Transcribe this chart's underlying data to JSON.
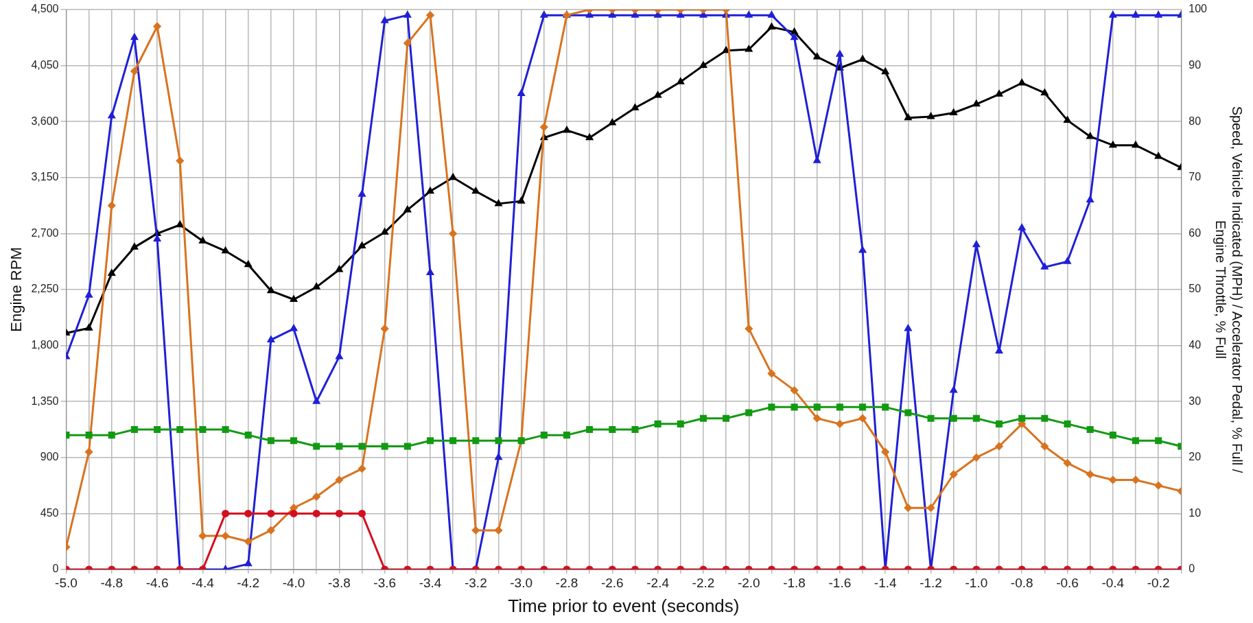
{
  "chart_data": {
    "type": "line",
    "xlabel": "Time prior to event (seconds)",
    "ylabel": "Engine RPM",
    "y2label": "Speed, Vehicle Indicated (MPH) / Accelerator Pedal, % Full / Engine Throttle, % Full",
    "x": [
      -5.0,
      -4.9,
      -4.8,
      -4.7,
      -4.6,
      -4.5,
      -4.4,
      -4.3,
      -4.2,
      -4.1,
      -4.0,
      -3.9,
      -3.8,
      -3.7,
      -3.6,
      -3.5,
      -3.4,
      -3.3,
      -3.2,
      -3.1,
      -3.0,
      -2.9,
      -2.8,
      -2.7,
      -2.6,
      -2.5,
      -2.4,
      -2.3,
      -2.2,
      -2.1,
      -2.0,
      -1.9,
      -1.8,
      -1.7,
      -1.6,
      -1.5,
      -1.4,
      -1.3,
      -1.2,
      -1.1,
      -1.0,
      -0.9,
      -0.8,
      -0.7,
      -0.6,
      -0.5,
      -0.4,
      -0.3,
      -0.2,
      -0.1
    ],
    "series": [
      {
        "color": "#d40f1f",
        "marker": "circle",
        "axis": "y2",
        "values": [
          0,
          0,
          0,
          0,
          0,
          0,
          0,
          10,
          10,
          10,
          10,
          10,
          10,
          10,
          0,
          0,
          0,
          0,
          0,
          0,
          0,
          0,
          0,
          0,
          0,
          0,
          0,
          0,
          0,
          0,
          0,
          0,
          0,
          0,
          0,
          0,
          0,
          0,
          0,
          0,
          0,
          0,
          0,
          0,
          0,
          0,
          0,
          0,
          0,
          0
        ]
      },
      {
        "color": "#139a13",
        "marker": "square",
        "axis": "y2",
        "values": [
          24,
          24,
          24,
          25,
          25,
          25,
          25,
          25,
          24,
          23,
          23,
          22,
          22,
          22,
          22,
          22,
          23,
          23,
          23,
          23,
          23,
          24,
          24,
          25,
          25,
          25,
          26,
          26,
          27,
          27,
          28,
          29,
          29,
          29,
          29,
          29,
          29,
          28,
          27,
          27,
          27,
          26,
          27,
          27,
          26,
          25,
          24,
          23,
          23,
          22
        ]
      },
      {
        "color": "#d9731f",
        "marker": "diamond",
        "axis": "y2",
        "values": [
          4,
          21,
          65,
          89,
          97,
          73,
          6,
          6,
          5,
          7,
          11,
          13,
          16,
          18,
          43,
          94,
          99,
          60,
          7,
          7,
          23,
          79,
          99,
          100,
          100,
          100,
          100,
          100,
          100,
          100,
          43,
          35,
          32,
          27,
          26,
          27,
          21,
          11,
          11,
          17,
          20,
          22,
          26,
          22,
          19,
          17,
          16,
          16,
          15,
          14
        ]
      },
      {
        "color": "#1f1fd6",
        "marker": "triangle",
        "axis": "y2",
        "values": [
          38,
          49,
          81,
          95,
          59,
          0,
          0,
          0,
          1,
          41,
          43,
          30,
          38,
          67,
          98,
          99,
          53,
          0,
          0,
          20,
          85,
          99,
          99,
          99,
          99,
          99,
          99,
          99,
          99,
          99,
          99,
          99,
          95,
          73,
          92,
          57,
          0,
          43,
          0,
          32,
          58,
          39,
          61,
          54,
          55,
          66,
          99,
          99,
          99,
          99
        ]
      },
      {
        "color": "#000000",
        "marker": "triangle",
        "axis": "y",
        "values": [
          1900,
          1940,
          2380,
          2590,
          2700,
          2770,
          2640,
          2560,
          2450,
          2240,
          2170,
          2270,
          2410,
          2600,
          2710,
          2890,
          3040,
          3150,
          3040,
          2940,
          2960,
          3470,
          3530,
          3470,
          3590,
          3710,
          3810,
          3920,
          4050,
          4170,
          4180,
          4360,
          4320,
          4120,
          4030,
          4100,
          4000,
          3630,
          3640,
          3670,
          3740,
          3820,
          3910,
          3830,
          3610,
          3480,
          3410,
          3410,
          3320,
          3230
        ]
      }
    ],
    "xlim": [
      -5.0,
      -0.1
    ],
    "xticks": [
      {
        "value": -5.0,
        "label": "-5.0"
      },
      {
        "value": -4.9,
        "label": null
      },
      {
        "value": -4.8,
        "label": "-4.8"
      },
      {
        "value": -4.7,
        "label": null
      },
      {
        "value": -4.6,
        "label": "-4.6"
      },
      {
        "value": -4.5,
        "label": null
      },
      {
        "value": -4.4,
        "label": "-4.4"
      },
      {
        "value": -4.3,
        "label": null
      },
      {
        "value": -4.2,
        "label": "-4.2"
      },
      {
        "value": -4.1,
        "label": null
      },
      {
        "value": -4.0,
        "label": "-4.0"
      },
      {
        "value": -3.9,
        "label": null
      },
      {
        "value": -3.8,
        "label": "-3.8"
      },
      {
        "value": -3.7,
        "label": null
      },
      {
        "value": -3.6,
        "label": "-3.6"
      },
      {
        "value": -3.5,
        "label": null
      },
      {
        "value": -3.4,
        "label": "-3.4"
      },
      {
        "value": -3.3,
        "label": null
      },
      {
        "value": -3.2,
        "label": "-3.2"
      },
      {
        "value": -3.1,
        "label": null
      },
      {
        "value": -3.0,
        "label": "-3.0"
      },
      {
        "value": -2.9,
        "label": null
      },
      {
        "value": -2.8,
        "label": "-2.8"
      },
      {
        "value": -2.7,
        "label": null
      },
      {
        "value": -2.6,
        "label": "-2.6"
      },
      {
        "value": -2.5,
        "label": null
      },
      {
        "value": -2.4,
        "label": "-2.4"
      },
      {
        "value": -2.3,
        "label": null
      },
      {
        "value": -2.2,
        "label": "-2.2"
      },
      {
        "value": -2.1,
        "label": null
      },
      {
        "value": -2.0,
        "label": "-2.0"
      },
      {
        "value": -1.9,
        "label": null
      },
      {
        "value": -1.8,
        "label": "-1.8"
      },
      {
        "value": -1.7,
        "label": null
      },
      {
        "value": -1.6,
        "label": "-1.6"
      },
      {
        "value": -1.5,
        "label": null
      },
      {
        "value": -1.4,
        "label": "-1.4"
      },
      {
        "value": -1.3,
        "label": null
      },
      {
        "value": -1.2,
        "label": "-1.2"
      },
      {
        "value": -1.1,
        "label": null
      },
      {
        "value": -1.0,
        "label": "-1.0"
      },
      {
        "value": -0.9,
        "label": null
      },
      {
        "value": -0.8,
        "label": "-0.8"
      },
      {
        "value": -0.7,
        "label": null
      },
      {
        "value": -0.6,
        "label": "-0.6"
      },
      {
        "value": -0.5,
        "label": null
      },
      {
        "value": -0.4,
        "label": "-0.4"
      },
      {
        "value": -0.3,
        "label": null
      },
      {
        "value": -0.2,
        "label": "-0.2"
      },
      {
        "value": -0.1,
        "label": null
      }
    ],
    "ylim": [
      0,
      4500
    ],
    "yticks": [
      0,
      450,
      900,
      {
        "value": 1350,
        "label": "1,350"
      },
      {
        "value": 1800,
        "label": "1,800"
      },
      {
        "value": 2250,
        "label": "2,250"
      },
      {
        "value": 2700,
        "label": "2,700"
      },
      {
        "value": 3150,
        "label": "3,150"
      },
      {
        "value": 3600,
        "label": "3,600"
      },
      {
        "value": 4050,
        "label": "4,050"
      },
      {
        "value": 4500,
        "label": "4,500"
      }
    ],
    "y2lim": [
      0,
      100
    ],
    "y2ticks": [
      0,
      10,
      20,
      30,
      40,
      50,
      60,
      70,
      80,
      90,
      100
    ],
    "grid": true,
    "legend": false,
    "line_style": "solid"
  }
}
